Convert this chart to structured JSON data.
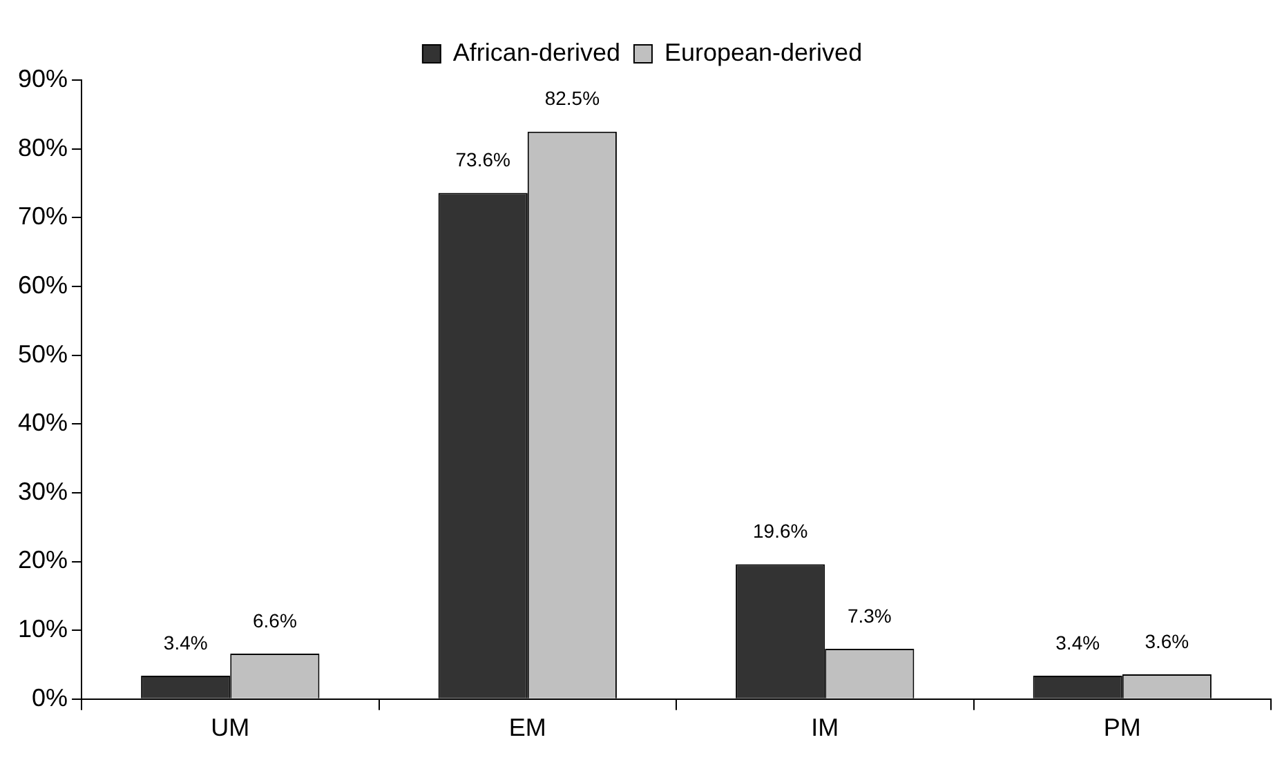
{
  "chart_data": {
    "type": "bar",
    "categories": [
      "UM",
      "EM",
      "IM",
      "PM"
    ],
    "series": [
      {
        "name": "African-derived",
        "color": "#333333",
        "values": [
          3.4,
          73.6,
          19.6,
          3.4
        ],
        "value_labels": [
          "3.4%",
          "73.6%",
          "19.6%",
          "3.4%"
        ]
      },
      {
        "name": "European-derived",
        "color": "#c0c0c0",
        "values": [
          6.6,
          82.5,
          7.3,
          3.6
        ],
        "value_labels": [
          "6.6%",
          "82.5%",
          "7.3%",
          "3.6%"
        ]
      }
    ],
    "ylim": [
      0,
      90
    ],
    "yticks": [
      {
        "value": 0,
        "label": "0%"
      },
      {
        "value": 10,
        "label": "10%"
      },
      {
        "value": 20,
        "label": "20%"
      },
      {
        "value": 30,
        "label": "30%"
      },
      {
        "value": 40,
        "label": "40%"
      },
      {
        "value": 50,
        "label": "50%"
      },
      {
        "value": 60,
        "label": "60%"
      },
      {
        "value": 70,
        "label": "70%"
      },
      {
        "value": 80,
        "label": "80%"
      },
      {
        "value": 90,
        "label": "90%"
      }
    ],
    "grid": false,
    "legend": "top"
  }
}
